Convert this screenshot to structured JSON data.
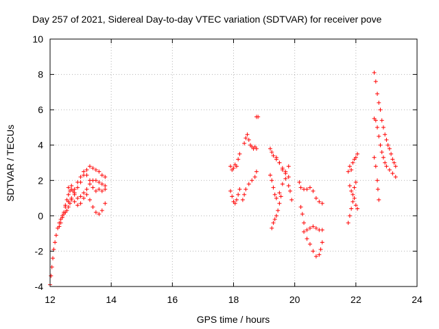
{
  "chart_data": {
    "type": "scatter",
    "title": "Day 257 of 2021, Sidereal Day-to-day VTEC variation (SDTVAR) for receiver pove",
    "xlabel": "GPS time / hours",
    "ylabel": "SDTVAR / TECUs",
    "xlim": [
      12,
      24
    ],
    "ylim": [
      -4,
      10
    ],
    "xticks": [
      "12",
      "14",
      "16",
      "18",
      "20",
      "22",
      "24"
    ],
    "yticks": [
      "-4",
      "-2",
      "0",
      "2",
      "4",
      "6",
      "8",
      "10"
    ],
    "grid": true,
    "marker": "+",
    "marker_color": "#ff0000",
    "series": [
      {
        "name": "SDTVAR",
        "points": [
          [
            12.0,
            -3.9
          ],
          [
            12.03,
            -3.4
          ],
          [
            12.06,
            -2.9
          ],
          [
            12.09,
            -2.4
          ],
          [
            12.12,
            -1.9
          ],
          [
            12.16,
            -1.5
          ],
          [
            12.2,
            -1.1
          ],
          [
            12.25,
            -0.7
          ],
          [
            12.3,
            -0.4
          ],
          [
            12.35,
            -0.2
          ],
          [
            12.4,
            0.0
          ],
          [
            12.45,
            0.2
          ],
          [
            12.5,
            0.5
          ],
          [
            12.55,
            0.9
          ],
          [
            12.6,
            1.2
          ],
          [
            12.65,
            1.4
          ],
          [
            12.7,
            1.5
          ],
          [
            12.75,
            1.4
          ],
          [
            12.8,
            1.2
          ],
          [
            12.9,
            1.0
          ],
          [
            13.0,
            1.1
          ],
          [
            13.1,
            1.3
          ],
          [
            13.2,
            1.5
          ],
          [
            13.3,
            1.8
          ],
          [
            13.4,
            2.0
          ],
          [
            13.5,
            2.0
          ],
          [
            13.6,
            1.9
          ],
          [
            13.7,
            1.8
          ],
          [
            13.8,
            1.7
          ],
          [
            12.3,
            -0.6
          ],
          [
            12.35,
            -0.4
          ],
          [
            12.4,
            -0.1
          ],
          [
            12.45,
            0.1
          ],
          [
            12.5,
            0.2
          ],
          [
            12.55,
            0.3
          ],
          [
            12.6,
            0.5
          ],
          [
            12.65,
            0.7
          ],
          [
            12.7,
            0.9
          ],
          [
            12.8,
            1.3
          ],
          [
            12.9,
            1.6
          ],
          [
            13.0,
            1.9
          ],
          [
            13.1,
            2.3
          ],
          [
            13.2,
            2.6
          ],
          [
            13.3,
            2.8
          ],
          [
            13.4,
            2.7
          ],
          [
            13.5,
            2.6
          ],
          [
            13.6,
            2.5
          ],
          [
            13.7,
            2.3
          ],
          [
            13.8,
            2.2
          ],
          [
            12.5,
            0.6
          ],
          [
            12.6,
            0.8
          ],
          [
            12.7,
            1.0
          ],
          [
            12.8,
            0.8
          ],
          [
            12.9,
            0.6
          ],
          [
            13.0,
            0.7
          ],
          [
            13.1,
            1.0
          ],
          [
            13.2,
            1.2
          ],
          [
            13.3,
            0.9
          ],
          [
            13.4,
            0.5
          ],
          [
            13.5,
            0.2
          ],
          [
            13.6,
            0.1
          ],
          [
            13.7,
            0.3
          ],
          [
            13.8,
            0.7
          ],
          [
            12.6,
            1.6
          ],
          [
            12.7,
            1.7
          ],
          [
            12.8,
            1.5
          ],
          [
            12.9,
            1.9
          ],
          [
            13.0,
            2.2
          ],
          [
            13.1,
            2.5
          ],
          [
            13.2,
            2.3
          ],
          [
            13.3,
            2.0
          ],
          [
            13.4,
            1.6
          ],
          [
            13.5,
            1.4
          ],
          [
            13.6,
            1.5
          ],
          [
            13.7,
            1.4
          ],
          [
            13.8,
            1.5
          ],
          [
            17.9,
            2.8
          ],
          [
            17.95,
            2.6
          ],
          [
            18.0,
            2.7
          ],
          [
            18.05,
            2.9
          ],
          [
            18.1,
            2.8
          ],
          [
            18.15,
            3.2
          ],
          [
            18.2,
            3.5
          ],
          [
            17.9,
            1.4
          ],
          [
            17.95,
            1.1
          ],
          [
            18.0,
            0.8
          ],
          [
            18.05,
            0.7
          ],
          [
            18.1,
            0.9
          ],
          [
            18.15,
            1.2
          ],
          [
            18.2,
            1.5
          ],
          [
            18.35,
            4.1
          ],
          [
            18.4,
            4.4
          ],
          [
            18.45,
            4.6
          ],
          [
            18.5,
            4.3
          ],
          [
            18.55,
            4.0
          ],
          [
            18.6,
            3.9
          ],
          [
            18.65,
            3.8
          ],
          [
            18.7,
            3.9
          ],
          [
            18.75,
            3.8
          ],
          [
            18.3,
            0.9
          ],
          [
            18.35,
            1.2
          ],
          [
            18.4,
            1.5
          ],
          [
            18.5,
            1.8
          ],
          [
            18.6,
            2.0
          ],
          [
            18.7,
            2.2
          ],
          [
            18.75,
            2.5
          ],
          [
            18.75,
            5.6
          ],
          [
            18.8,
            5.6
          ],
          [
            19.2,
            3.8
          ],
          [
            19.25,
            3.6
          ],
          [
            19.3,
            3.4
          ],
          [
            19.4,
            3.2
          ],
          [
            19.5,
            3.0
          ],
          [
            19.6,
            2.7
          ],
          [
            19.7,
            2.5
          ],
          [
            19.8,
            2.2
          ],
          [
            19.2,
            2.3
          ],
          [
            19.25,
            2.0
          ],
          [
            19.3,
            1.6
          ],
          [
            19.35,
            1.2
          ],
          [
            19.4,
            1.0
          ],
          [
            19.5,
            1.3
          ],
          [
            19.6,
            1.8
          ],
          [
            19.7,
            2.4
          ],
          [
            19.8,
            2.8
          ],
          [
            19.25,
            -0.7
          ],
          [
            19.3,
            -0.4
          ],
          [
            19.35,
            -0.2
          ],
          [
            19.4,
            0.0
          ],
          [
            19.45,
            0.3
          ],
          [
            19.5,
            0.7
          ],
          [
            19.55,
            1.1
          ],
          [
            19.4,
            3.3
          ],
          [
            19.5,
            3.0
          ],
          [
            19.6,
            2.6
          ],
          [
            19.7,
            2.1
          ],
          [
            19.8,
            1.7
          ],
          [
            19.85,
            1.4
          ],
          [
            19.9,
            0.9
          ],
          [
            20.15,
            1.9
          ],
          [
            20.2,
            1.6
          ],
          [
            20.3,
            1.5
          ],
          [
            20.4,
            1.5
          ],
          [
            20.5,
            1.6
          ],
          [
            20.6,
            1.4
          ],
          [
            20.7,
            1.0
          ],
          [
            20.8,
            0.8
          ],
          [
            20.9,
            0.7
          ],
          [
            20.2,
            0.5
          ],
          [
            20.25,
            0.1
          ],
          [
            20.3,
            -0.4
          ],
          [
            20.4,
            -0.8
          ],
          [
            20.5,
            -0.7
          ],
          [
            20.6,
            -0.6
          ],
          [
            20.7,
            -0.7
          ],
          [
            20.8,
            -0.8
          ],
          [
            20.9,
            -0.8
          ],
          [
            20.3,
            -0.9
          ],
          [
            20.4,
            -1.3
          ],
          [
            20.5,
            -1.6
          ],
          [
            20.6,
            -2.0
          ],
          [
            20.7,
            -2.3
          ],
          [
            20.8,
            -2.2
          ],
          [
            20.85,
            -1.9
          ],
          [
            20.9,
            -1.5
          ],
          [
            21.75,
            2.5
          ],
          [
            21.8,
            2.8
          ],
          [
            21.85,
            2.6
          ],
          [
            21.9,
            3.0
          ],
          [
            21.95,
            3.2
          ],
          [
            22.0,
            3.3
          ],
          [
            22.05,
            3.5
          ],
          [
            21.8,
            1.7
          ],
          [
            21.85,
            1.4
          ],
          [
            21.9,
            1.2
          ],
          [
            21.95,
            1.6
          ],
          [
            22.0,
            1.9
          ],
          [
            21.75,
            -0.4
          ],
          [
            21.8,
            0.0
          ],
          [
            21.85,
            0.4
          ],
          [
            21.9,
            0.8
          ],
          [
            21.95,
            1.0
          ],
          [
            22.0,
            0.6
          ],
          [
            22.05,
            0.4
          ],
          [
            22.6,
            8.1
          ],
          [
            22.65,
            7.6
          ],
          [
            22.7,
            6.9
          ],
          [
            22.75,
            6.4
          ],
          [
            22.8,
            6.0
          ],
          [
            22.85,
            5.4
          ],
          [
            22.9,
            5.0
          ],
          [
            22.95,
            4.6
          ],
          [
            23.0,
            4.3
          ],
          [
            23.05,
            4.0
          ],
          [
            23.1,
            3.8
          ],
          [
            23.15,
            3.5
          ],
          [
            23.2,
            3.2
          ],
          [
            23.25,
            3.0
          ],
          [
            23.3,
            2.8
          ],
          [
            22.6,
            5.5
          ],
          [
            22.65,
            5.4
          ],
          [
            22.7,
            5.0
          ],
          [
            22.75,
            4.5
          ],
          [
            22.8,
            4.0
          ],
          [
            22.85,
            3.6
          ],
          [
            22.9,
            3.3
          ],
          [
            22.95,
            3.0
          ],
          [
            23.0,
            2.8
          ],
          [
            23.1,
            2.6
          ],
          [
            23.2,
            2.4
          ],
          [
            23.3,
            2.2
          ],
          [
            22.6,
            3.3
          ],
          [
            22.65,
            2.8
          ],
          [
            22.7,
            2.0
          ],
          [
            22.72,
            1.5
          ],
          [
            22.75,
            0.9
          ]
        ]
      }
    ]
  }
}
